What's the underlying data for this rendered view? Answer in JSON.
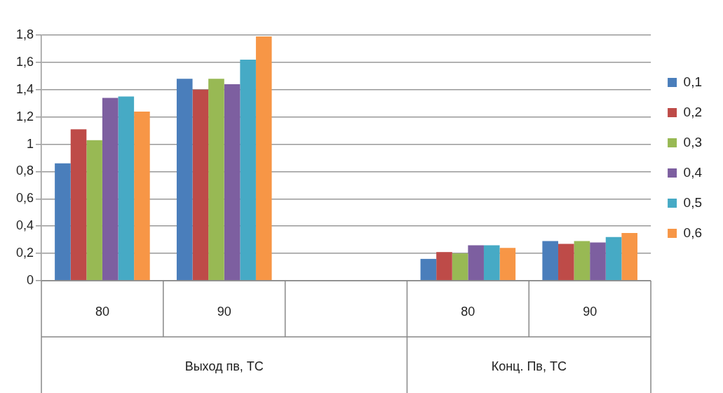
{
  "chart_data": {
    "type": "bar",
    "categories": [
      "80",
      "90",
      null,
      "80",
      "90"
    ],
    "series": [
      {
        "name": "0,1",
        "color": "#4a7ebb",
        "values": [
          0.86,
          1.48,
          null,
          0.16,
          0.29
        ]
      },
      {
        "name": "0,2",
        "color": "#be4b48",
        "values": [
          1.11,
          1.4,
          null,
          0.21,
          0.27
        ]
      },
      {
        "name": "0,3",
        "color": "#98b954",
        "values": [
          1.03,
          1.48,
          null,
          0.2,
          0.29
        ]
      },
      {
        "name": "0,4",
        "color": "#7d5fa0",
        "values": [
          1.34,
          1.44,
          null,
          0.26,
          0.28
        ]
      },
      {
        "name": "0,5",
        "color": "#46aac5",
        "values": [
          1.35,
          1.62,
          null,
          0.26,
          0.32
        ]
      },
      {
        "name": "0,6",
        "color": "#f79646",
        "values": [
          1.24,
          1.79,
          null,
          0.24,
          0.35
        ]
      }
    ],
    "annotations": [
      "Выход пв, ТС",
      "Конц. Пв, ТС"
    ],
    "ylim": [
      0,
      1.8
    ],
    "yticks": [
      0,
      {
        "value": 0.2,
        "label": "0,2"
      },
      {
        "value": 0.4,
        "label": "0,4"
      },
      {
        "value": 0.6,
        "label": "0,6"
      },
      {
        "value": 0.8,
        "label": "0,8"
      },
      1,
      {
        "value": 1.2,
        "label": "1,2"
      },
      {
        "value": 1.4,
        "label": "1,4"
      },
      {
        "value": 1.6,
        "label": "1,6"
      },
      {
        "value": 1.8,
        "label": "1,8"
      }
    ],
    "grid": "y",
    "legend": "right"
  }
}
